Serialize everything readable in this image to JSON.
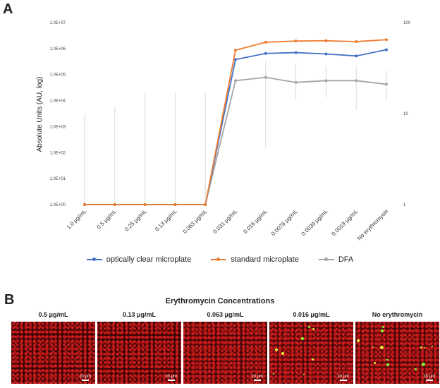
{
  "panel_a_label": "A",
  "panel_b_label": "B",
  "chart_data": {
    "type": "line",
    "ylabel": "Absolute Units (AU, log)",
    "y_scale": "log",
    "ylim": [
      1,
      10000000
    ],
    "y_tick_labels": [
      "1.0E+00",
      "1.0E+01",
      "1.0E+02",
      "1.0E+03",
      "1.0E+04",
      "1.0E+05",
      "1.0E+06",
      "1.0E+07"
    ],
    "y2_scale": "log",
    "y2lim": [
      1,
      100
    ],
    "y2_tick_labels": [
      "1",
      "10",
      "100"
    ],
    "categories": [
      "1.0 μg/mL",
      "0.5 μg/mL",
      "0.25 μg/mL",
      "0.13 μg/mL",
      "0.063 μg/mL",
      "0.031 μg/mL",
      "0.016 μg/mL",
      "0.0078 μg/mL",
      "0.0039 μg/mL",
      "0.0019 μg/mL",
      "No erythromycin"
    ],
    "series": [
      {
        "name": "optically clear microplate",
        "color": "#4472c4",
        "axis": "left",
        "values": [
          1,
          1,
          1,
          1,
          1,
          380000,
          650000,
          700000,
          620000,
          520000,
          900000
        ]
      },
      {
        "name": "standard microplate",
        "color": "#ed7d31",
        "axis": "left",
        "values": [
          1,
          1,
          1,
          1,
          1,
          870000,
          1750000,
          1950000,
          2000000,
          1850000,
          2200000
        ]
      },
      {
        "name": "DFA",
        "color": "#a5a5a5",
        "axis": "right",
        "values": [
          1,
          1,
          1,
          1,
          1,
          23,
          25,
          22,
          23,
          23,
          21
        ],
        "error_upper": [
          10,
          12,
          17,
          17,
          17,
          24,
          38,
          35,
          33,
          34,
          30
        ],
        "error_lower": [
          1,
          1,
          1,
          1,
          1,
          23,
          4.2,
          14,
          15,
          11,
          14
        ]
      }
    ],
    "legend_position": "bottom",
    "grid": false
  },
  "microscopy": {
    "title": "Erythromycin Concentrations",
    "scale_label": "10 μm",
    "panels": [
      {
        "label": "0.5 μg/mL",
        "green_cells": 0
      },
      {
        "label": "0.13 μg/mL",
        "green_cells": 0
      },
      {
        "label": "0.063 μg/mL",
        "green_cells": 0
      },
      {
        "label": "0.016 μg/mL",
        "green_cells": 8
      },
      {
        "label": "No erythromycin",
        "green_cells": 14
      }
    ]
  }
}
